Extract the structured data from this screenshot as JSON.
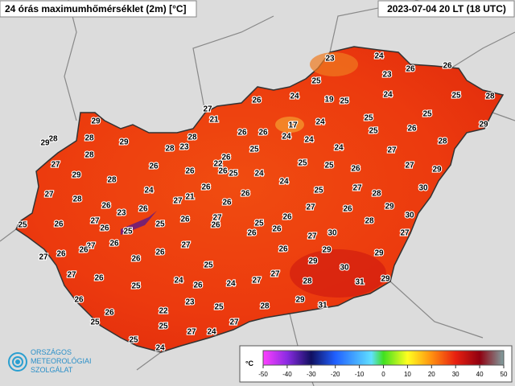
{
  "header": {
    "title": "24 órás maximumhőmérséklet (2m) [°C]",
    "timestamp": "2023-07-04 20 LT (18 UTC)"
  },
  "logo": {
    "lines": [
      "ORSZÁGOS",
      "METEOROLÓGIAI",
      "SZOLGÁLAT"
    ]
  },
  "colorbar": {
    "unit": "°C",
    "lim": [
      -50,
      50
    ],
    "ticks": [
      -50,
      -40,
      -30,
      -20,
      -10,
      0,
      10,
      20,
      30,
      40,
      50
    ]
  },
  "stations": [
    23,
    24,
    25,
    23,
    26,
    26,
    26,
    24,
    19,
    25,
    24,
    25,
    28,
    27,
    21,
    25,
    25,
    29,
    29,
    17,
    24,
    25,
    26,
    28,
    29,
    28,
    29,
    28,
    23,
    28,
    26,
    26,
    24,
    24,
    28,
    28,
    26,
    25,
    24,
    27,
    27,
    26,
    22,
    26,
    25,
    24,
    25,
    25,
    26,
    27,
    29,
    29,
    28,
    26,
    24,
    27,
    24,
    26,
    25,
    27,
    28,
    30,
    28,
    26,
    27,
    21,
    26,
    26,
    27,
    26,
    29,
    25,
    26,
    27,
    23,
    26,
    25,
    26,
    27,
    26,
    25,
    26,
    28,
    30,
    26,
    25,
    27,
    26,
    26,
    27,
    26,
    26,
    27,
    30,
    27,
    27,
    26,
    26,
    26,
    26,
    29,
    29,
    27,
    26,
    25,
    29,
    30,
    25,
    24,
    26,
    24,
    27,
    27,
    28,
    31,
    29,
    26,
    23,
    25,
    29,
    26,
    22,
    28,
    31,
    25,
    25,
    27,
    25,
    27,
    24,
    24
  ]
}
